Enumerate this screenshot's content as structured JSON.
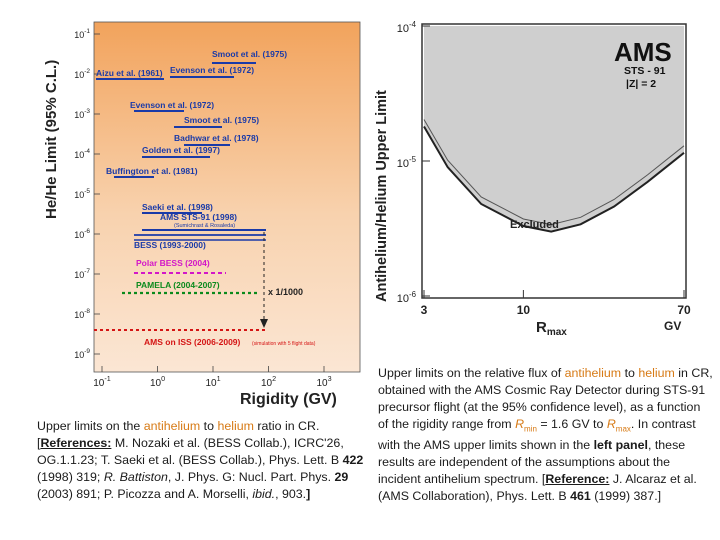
{
  "left_figure": {
    "ylabel": "He/He Limit (95% C.L.)",
    "xlabel": "Rigidity (GV)",
    "y_ticks": [
      "10",
      "10",
      "10",
      "10",
      "10",
      "10",
      "10",
      "10",
      "10"
    ],
    "y_exps": [
      "-1",
      "-2",
      "-3",
      "-4",
      "-5",
      "-6",
      "-7",
      "-8",
      "-9"
    ],
    "x_ticks": [
      "10",
      "10",
      "10",
      "10",
      "10"
    ],
    "x_exps": [
      "-1",
      "0",
      "1",
      "2",
      "3"
    ],
    "scale_note": "x 1/1000",
    "experiments": [
      {
        "label": "Smoot et al. (1975)",
        "color": "#1a3aa8"
      },
      {
        "label": "Aizu et al. (1961)",
        "color": "#1a3aa8"
      },
      {
        "label": "Evenson et al. (1972)",
        "color": "#1a3aa8"
      },
      {
        "label": "Evenson et al. (1972)",
        "color": "#1a3aa8"
      },
      {
        "label": "Smoot et al. (1975)",
        "color": "#1a3aa8"
      },
      {
        "label": "Badhwar et al. (1978)",
        "color": "#1a3aa8"
      },
      {
        "label": "Golden et al. (1997)",
        "color": "#1a3aa8"
      },
      {
        "label": "Buffington et al. (1981)",
        "color": "#1a3aa8"
      },
      {
        "label": "Saeki et al. (1998)",
        "color": "#1a3aa8"
      },
      {
        "label": "AMS STS-91 (1998)",
        "color": "#1a3aa8"
      },
      {
        "label": "(Sumichrast & Rosaleda)",
        "color": "#1a3aa8"
      },
      {
        "label": "BESS (1993-2000)",
        "color": "#1a3aa8"
      },
      {
        "label": "Polar BESS (2004)",
        "color": "#d316c8"
      },
      {
        "label": "PAMELA (2004-2007)",
        "color": "#0b8a1c"
      },
      {
        "label": "AMS on ISS (2006-2009)",
        "color": "#d41414"
      },
      {
        "label": "(simulation with 5 flight data)",
        "color": "#d41414"
      }
    ]
  },
  "right_figure": {
    "logo": "AMS",
    "mission": "STS - 91",
    "charge": "|Z| = 2",
    "ylabel": "Antihelium/Helium Upper Limit",
    "xlabel": "R",
    "xlabel_sub": "max",
    "x_unit": "GV",
    "x_ticks": [
      "3",
      "10",
      "70"
    ],
    "y_ticks": [
      "10",
      "10",
      "10"
    ],
    "y_exps": [
      "-4",
      "-5",
      "-6"
    ],
    "region_label": "Excluded"
  },
  "chart_data": {
    "type": "line",
    "title": "",
    "xlabel": "Rmax (GV)",
    "ylabel": "Antihelium/Helium Upper Limit",
    "x_scale": "log",
    "y_scale": "log",
    "xlim": [
      3,
      70
    ],
    "ylim": [
      1e-06,
      0.0001
    ],
    "series": [
      {
        "name": "Upper limit",
        "x": [
          3,
          4,
          6,
          10,
          14,
          20,
          30,
          45,
          70
        ],
        "y": [
          1.8e-05,
          9e-06,
          4.8e-06,
          3.3e-06,
          3e-06,
          3.4e-06,
          4.6e-06,
          7e-06,
          1.15e-05
        ]
      }
    ]
  },
  "left_caption": {
    "p1": "Upper limits on the ",
    "p2": "antihelium",
    "p3": " to ",
    "p4": "helium",
    "p5": " ratio in CR. [",
    "p6": "References:",
    "p7": " M. Nozaki et al. (BESS Collab.), ICRC'26, OG.1.1.23; T. Saeki et al. (BESS Collab.), Phys. Lett. B ",
    "p8": "422",
    "p9": " (1998) 319; ",
    "p10": "R. Battiston",
    "p11": ", J. Phys. G: Nucl. Part. Phys. ",
    "p12": "29",
    "p13": " (2003) 891; P. Picozza and A. Morselli, ",
    "p14": "ibid.",
    "p15": ", 903.",
    "p16": "]"
  },
  "right_caption": {
    "p1": "Upper limits on the relative flux of ",
    "p2": "antihelium",
    "p3": " to ",
    "p4": "helium",
    "p5": " in CR, obtained with the AMS Cosmic Ray Detector during STS-91 precursor flight (at the 95% confidence level), as a function of the rigidity range from ",
    "p6": "R",
    "p7": "min",
    "p8": " = 1.6 GV to ",
    "p9": "R",
    "p10": "max",
    "p11": ". In contrast with the AMS upper limits shown in the ",
    "p12": "left panel",
    "p13": ", these results are independent of the assumptions about the incident antihelium spectrum. [",
    "p14": "Reference:",
    "p15": " J. Alcaraz et al. (AMS Collaboration), Phys. Lett. B ",
    "p16": "461",
    "p17": " (1999) 387.]"
  }
}
